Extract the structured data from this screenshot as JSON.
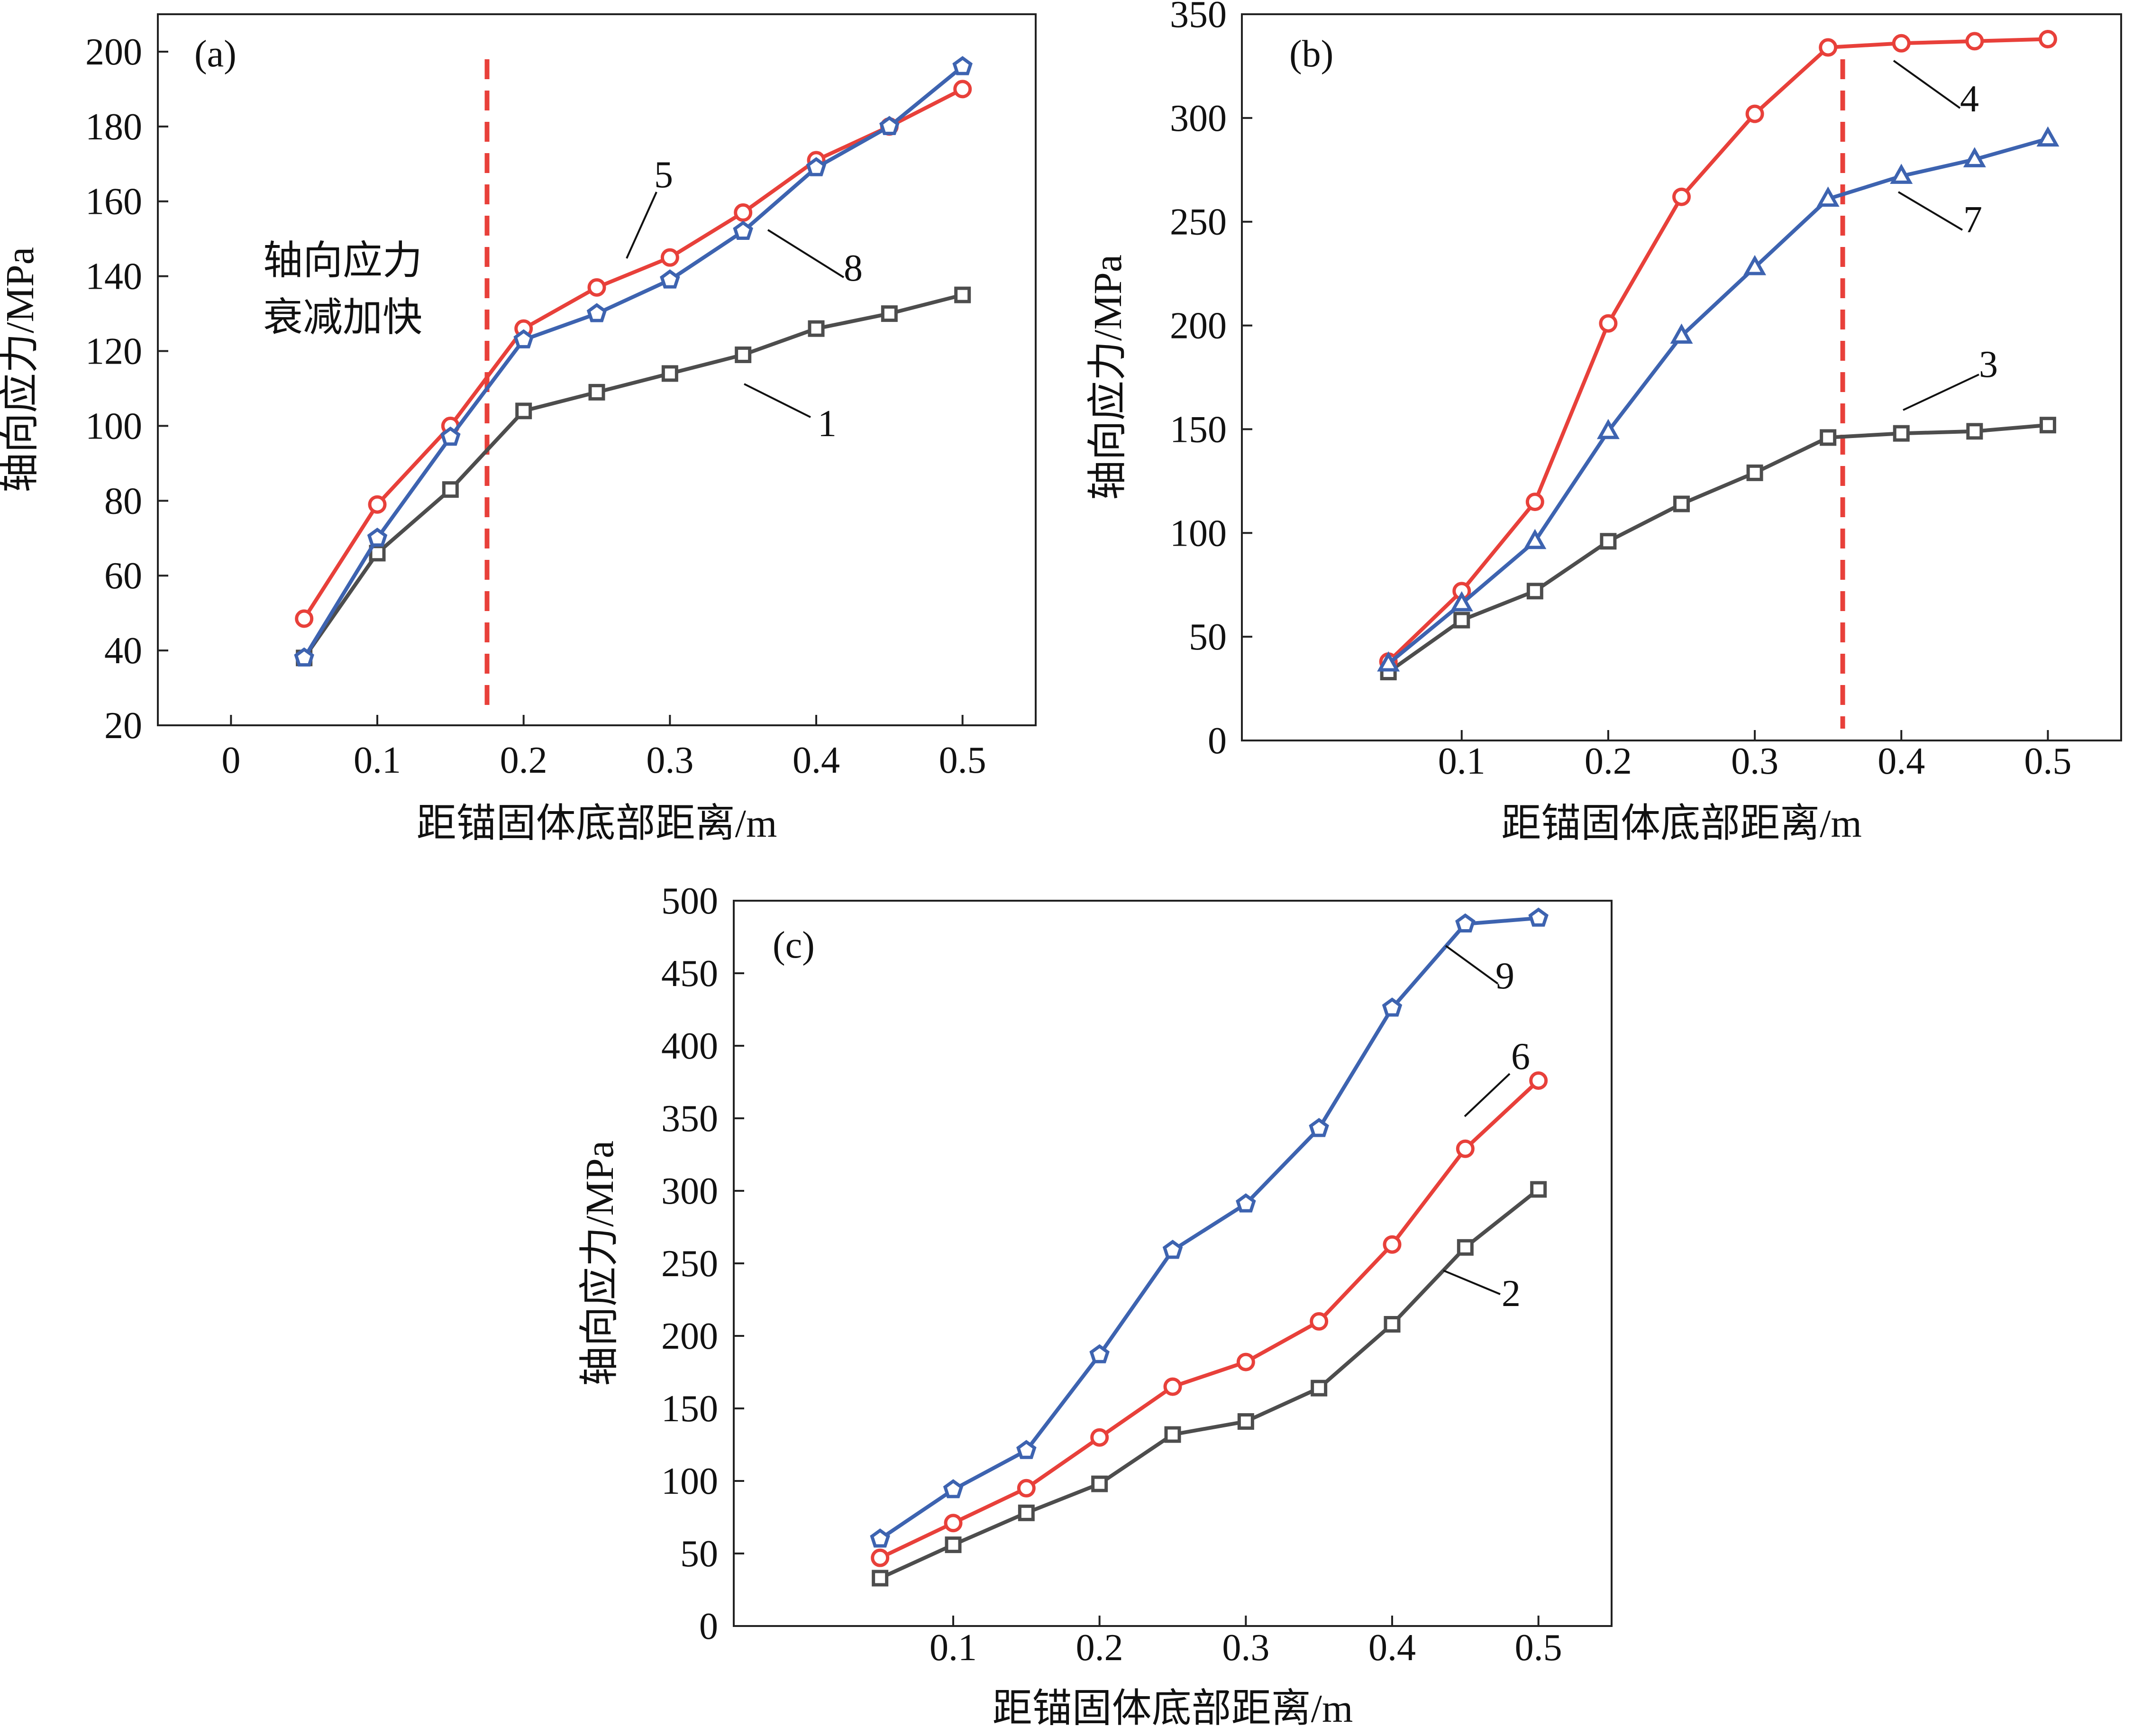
{
  "chart_data": [
    {
      "type": "line",
      "panel_label": "(a)",
      "xlabel": "距锚固体底部距离/m",
      "ylabel": "轴向应力/MPa",
      "xlim": [
        -0.05,
        0.55
      ],
      "ylim": [
        20,
        210
      ],
      "x_ticks": [
        "0",
        "0.1",
        "0.2",
        "0.3",
        "0.4",
        "0.5"
      ],
      "y_ticks": [
        "20",
        "40",
        "60",
        "80",
        "100",
        "120",
        "140",
        "160",
        "180",
        "200"
      ],
      "series": [
        {
          "name": "1",
          "color": "#4d4d4d",
          "marker": "square",
          "x": [
            0.05,
            0.1,
            0.15,
            0.2,
            0.25,
            0.3,
            0.35,
            0.4,
            0.45,
            0.5
          ],
          "values": [
            38,
            66,
            83,
            104,
            109,
            114,
            119,
            126,
            130,
            135
          ]
        },
        {
          "name": "5",
          "color": "#e8403a",
          "marker": "circle",
          "x": [
            0.05,
            0.1,
            0.15,
            0.2,
            0.25,
            0.3,
            0.35,
            0.4,
            0.45,
            0.5
          ],
          "values": [
            48.5,
            79,
            100,
            126,
            137,
            145,
            157,
            171,
            180,
            190
          ]
        },
        {
          "name": "8",
          "color": "#3d63b0",
          "marker": "pentagon",
          "x": [
            0.05,
            0.1,
            0.15,
            0.2,
            0.25,
            0.3,
            0.35,
            0.4,
            0.45,
            0.5
          ],
          "values": [
            38,
            70,
            97,
            123,
            130,
            139,
            152,
            169,
            180,
            196
          ]
        }
      ],
      "reference_line": {
        "x": 0.175,
        "color": "#e8403a",
        "style": "dashed"
      },
      "annotation": [
        "轴向应力",
        "衰减加快"
      ],
      "callouts": [
        "1",
        "5",
        "8"
      ]
    },
    {
      "type": "line",
      "panel_label": "(b)",
      "xlabel": "距锚固体底部距离/m",
      "ylabel": "轴向应力/MPa",
      "xlim": [
        -0.05,
        0.55
      ],
      "ylim": [
        0,
        350
      ],
      "x_ticks": [
        "0.1",
        "0.2",
        "0.3",
        "0.4",
        "0.5"
      ],
      "y_ticks": [
        "0",
        "50",
        "100",
        "150",
        "200",
        "250",
        "300",
        "350"
      ],
      "series": [
        {
          "name": "3",
          "color": "#4d4d4d",
          "marker": "square",
          "x": [
            0.05,
            0.1,
            0.15,
            0.2,
            0.25,
            0.3,
            0.35,
            0.4,
            0.45,
            0.5
          ],
          "values": [
            33,
            58,
            72,
            96,
            114,
            129,
            146,
            148,
            149,
            152
          ]
        },
        {
          "name": "4",
          "color": "#e8403a",
          "marker": "circle",
          "x": [
            0.05,
            0.1,
            0.15,
            0.2,
            0.25,
            0.3,
            0.35,
            0.4,
            0.45,
            0.5
          ],
          "values": [
            38,
            72,
            115,
            201,
            262,
            302,
            334,
            336,
            337,
            338
          ]
        },
        {
          "name": "7",
          "color": "#3d63b0",
          "marker": "triangle",
          "x": [
            0.05,
            0.1,
            0.15,
            0.2,
            0.25,
            0.3,
            0.35,
            0.4,
            0.45,
            0.5
          ],
          "values": [
            37,
            66,
            96,
            149,
            195,
            228,
            261,
            272,
            280,
            290
          ]
        }
      ],
      "reference_line": {
        "x": 0.36,
        "color": "#e8403a",
        "style": "dashed"
      },
      "callouts": [
        "3",
        "4",
        "7"
      ]
    },
    {
      "type": "line",
      "panel_label": "(c)",
      "xlabel": "距锚固体底部距离/m",
      "ylabel": "轴向应力/MPa",
      "xlim": [
        -0.05,
        0.55
      ],
      "ylim": [
        0,
        500
      ],
      "x_ticks": [
        "0.1",
        "0.2",
        "0.3",
        "0.4",
        "0.5"
      ],
      "y_ticks": [
        "0",
        "50",
        "100",
        "150",
        "200",
        "250",
        "300",
        "350",
        "400",
        "450",
        "500"
      ],
      "series": [
        {
          "name": "2",
          "color": "#4d4d4d",
          "marker": "square",
          "x": [
            0.05,
            0.1,
            0.15,
            0.2,
            0.25,
            0.3,
            0.35,
            0.4,
            0.45,
            0.5
          ],
          "values": [
            33,
            56,
            78,
            98,
            132,
            141,
            164,
            208,
            261,
            301
          ]
        },
        {
          "name": "6",
          "color": "#e8403a",
          "marker": "circle",
          "x": [
            0.05,
            0.1,
            0.15,
            0.2,
            0.25,
            0.3,
            0.35,
            0.4,
            0.45,
            0.5
          ],
          "values": [
            47,
            71,
            95,
            130,
            165,
            182,
            210,
            263,
            329,
            376
          ]
        },
        {
          "name": "9",
          "color": "#3d63b0",
          "marker": "pentagon",
          "x": [
            0.05,
            0.1,
            0.15,
            0.2,
            0.25,
            0.3,
            0.35,
            0.4,
            0.45,
            0.5
          ],
          "values": [
            60,
            94,
            121,
            187,
            259,
            291,
            343,
            426,
            484,
            488
          ]
        }
      ],
      "callouts": [
        "2",
        "6",
        "9"
      ]
    }
  ]
}
